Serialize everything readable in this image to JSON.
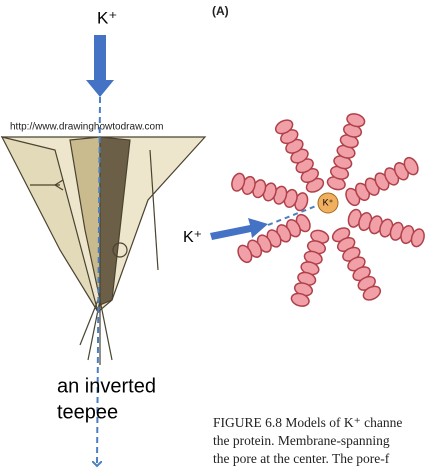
{
  "left_panel": {
    "ion_label": "K⁺",
    "source_url": "http://www.drawinghowtodraw.com",
    "caption": [
      "an inverted",
      "teepee"
    ]
  },
  "right_panel": {
    "panel_label": "(A)",
    "ion_label": "K⁺",
    "pore_ion_label": "K⁺",
    "figure_caption": [
      "FIGURE 6.8  Models of K⁺ channe",
      "the protein. Membrane-spanning",
      "the pore at the center. The pore-f"
    ]
  }
}
